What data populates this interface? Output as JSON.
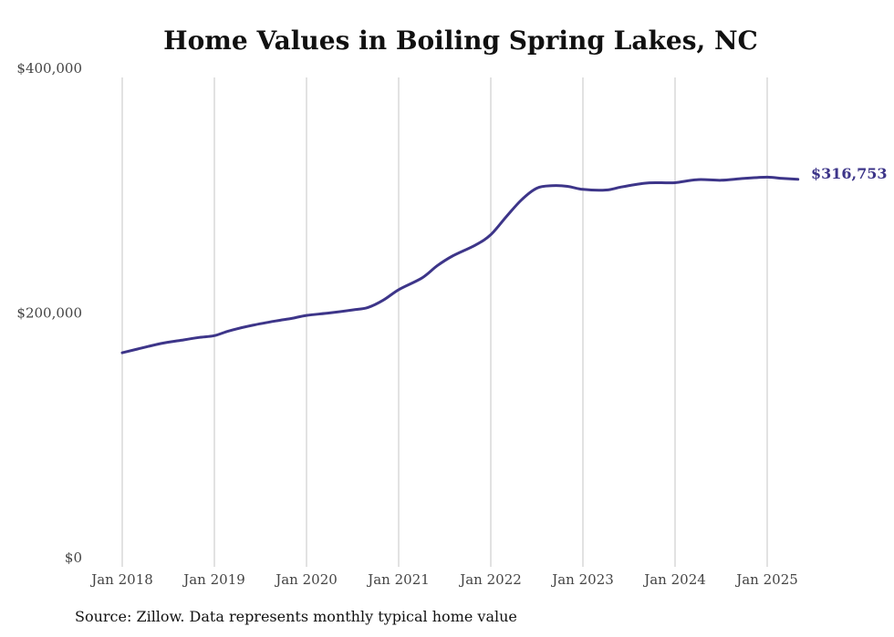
{
  "chart_data": {
    "type": "line",
    "title": "Home Values in Boiling Spring Lakes, NC",
    "xlabel": "",
    "ylabel": "",
    "ylim": [
      0,
      400000
    ],
    "y_ticks": [
      {
        "value": 0,
        "label": "$0"
      },
      {
        "value": 200000,
        "label": "$200,000"
      },
      {
        "value": 400000,
        "label": "$400,000"
      }
    ],
    "x_ticks": [
      {
        "value": 2018,
        "label": "Jan 2018"
      },
      {
        "value": 2019,
        "label": "Jan 2019"
      },
      {
        "value": 2020,
        "label": "Jan 2020"
      },
      {
        "value": 2021,
        "label": "Jan 2021"
      },
      {
        "value": 2022,
        "label": "Jan 2022"
      },
      {
        "value": 2023,
        "label": "Jan 2023"
      },
      {
        "value": 2024,
        "label": "Jan 2024"
      },
      {
        "value": 2025,
        "label": "Jan 2025"
      }
    ],
    "grid": "vertical",
    "line_color": "#3d3589",
    "end_label": "$316,753",
    "series": [
      {
        "values": [
          {
            "x": 2018.0,
            "y": 175000
          },
          {
            "x": 2018.1667,
            "y": 178000
          },
          {
            "x": 2018.4167,
            "y": 182500
          },
          {
            "x": 2018.6667,
            "y": 185500
          },
          {
            "x": 2018.8333,
            "y": 187500
          },
          {
            "x": 2019.0,
            "y": 189000
          },
          {
            "x": 2019.1667,
            "y": 193000
          },
          {
            "x": 2019.4167,
            "y": 197500
          },
          {
            "x": 2019.6667,
            "y": 201000
          },
          {
            "x": 2019.8333,
            "y": 203000
          },
          {
            "x": 2020.0,
            "y": 205500
          },
          {
            "x": 2020.25,
            "y": 207500
          },
          {
            "x": 2020.5,
            "y": 210000
          },
          {
            "x": 2020.6667,
            "y": 212000
          },
          {
            "x": 2020.8333,
            "y": 218000
          },
          {
            "x": 2021.0,
            "y": 226500
          },
          {
            "x": 2021.25,
            "y": 236000
          },
          {
            "x": 2021.4167,
            "y": 246000
          },
          {
            "x": 2021.5833,
            "y": 254000
          },
          {
            "x": 2021.8333,
            "y": 263000
          },
          {
            "x": 2022.0,
            "y": 271500
          },
          {
            "x": 2022.1667,
            "y": 286000
          },
          {
            "x": 2022.3333,
            "y": 300000
          },
          {
            "x": 2022.5,
            "y": 309500
          },
          {
            "x": 2022.6667,
            "y": 311500
          },
          {
            "x": 2022.8333,
            "y": 311000
          },
          {
            "x": 2023.0,
            "y": 308500
          },
          {
            "x": 2023.25,
            "y": 308000
          },
          {
            "x": 2023.4167,
            "y": 310500
          },
          {
            "x": 2023.6667,
            "y": 313500
          },
          {
            "x": 2023.8333,
            "y": 314000
          },
          {
            "x": 2024.0,
            "y": 314000
          },
          {
            "x": 2024.25,
            "y": 316500
          },
          {
            "x": 2024.5,
            "y": 316000
          },
          {
            "x": 2024.75,
            "y": 317500
          },
          {
            "x": 2025.0,
            "y": 318500
          },
          {
            "x": 2025.1667,
            "y": 317500
          },
          {
            "x": 2025.3333,
            "y": 316753
          }
        ]
      }
    ]
  },
  "footnote": "Source: Zillow. Data represents monthly typical home value"
}
